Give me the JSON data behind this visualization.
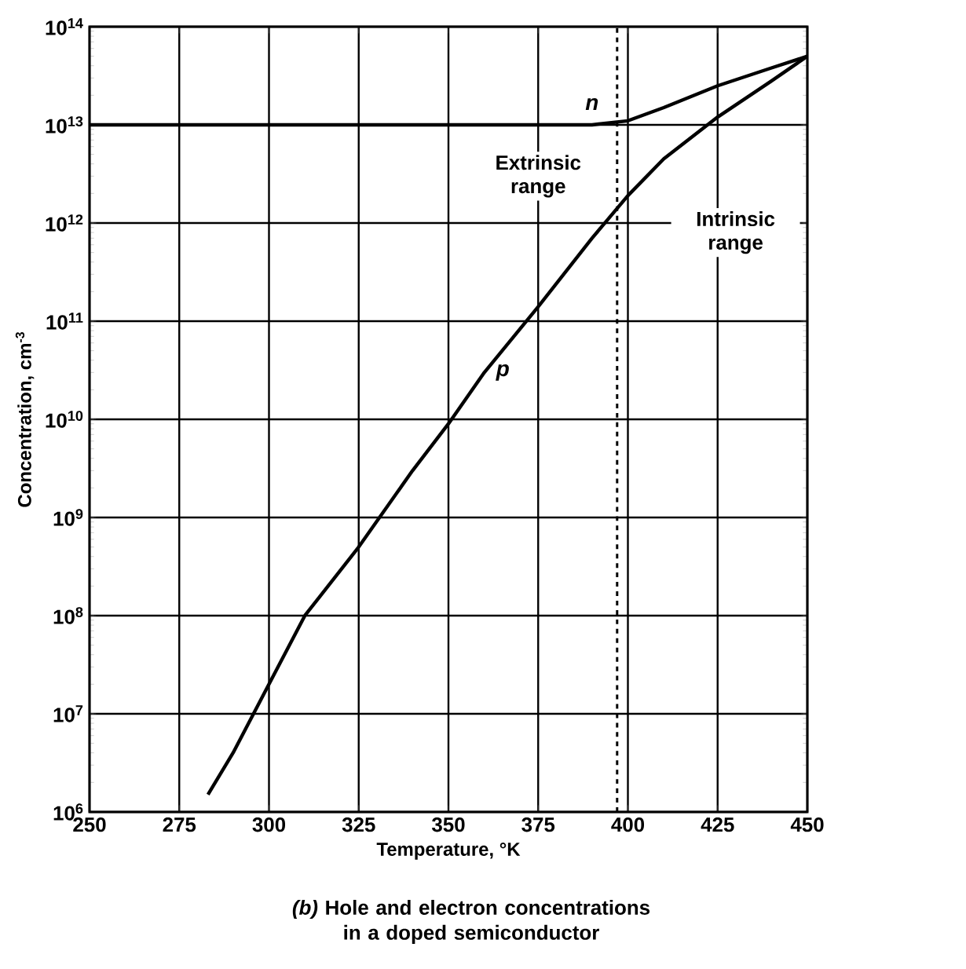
{
  "chart_data": {
    "type": "line",
    "xlabel": "Temperature, °K",
    "ylabel": "Concentration, cm$^{-3}$",
    "xlim": [
      250,
      450
    ],
    "xticks": [
      250,
      275,
      300,
      325,
      350,
      375,
      400,
      425,
      450
    ],
    "ylim": [
      1000000.0,
      100000000000000.0
    ],
    "log": "y",
    "yticks": [
      {
        "value": 1000000.0,
        "label": "10$^{6}$"
      },
      {
        "value": 10000000.0,
        "label": "10$^{7}$"
      },
      {
        "value": 100000000.0,
        "label": "10$^{8}$"
      },
      {
        "value": 1000000000.0,
        "label": "10$^{9}$"
      },
      {
        "value": 10000000000.0,
        "label": "10$^{10}$"
      },
      {
        "value": 100000000000.0,
        "label": "10$^{11}$"
      },
      {
        "value": 1000000000000.0,
        "label": "10$^{12}$"
      },
      {
        "value": 10000000000000.0,
        "label": "10$^{13}$"
      },
      {
        "value": 100000000000000.0,
        "label": "10$^{14}$"
      }
    ],
    "grid": true,
    "marker": "none",
    "line_style": "solid",
    "series": [
      {
        "name": "n",
        "color": "#000000",
        "x": [
          250,
          275,
          300,
          325,
          350,
          375,
          390,
          400,
          410,
          425,
          440,
          450
        ],
        "values": [
          10000000000000.0,
          10000000000000.0,
          10000000000000.0,
          10000000000000.0,
          10000000000000.0,
          10000000000000.0,
          10000000000000.0,
          11000000000000.0,
          15000000000000.0,
          25000000000000.0,
          38000000000000.0,
          50000000000000.0
        ]
      },
      {
        "name": "p",
        "color": "#000000",
        "x": [
          283,
          290,
          300,
          310,
          325,
          340,
          350,
          360,
          375,
          390,
          400,
          410,
          425,
          440,
          450
        ],
        "values": [
          1500000.0,
          4000000.0,
          20000000.0,
          100000000.0,
          500000000.0,
          3000000000.0,
          9000000000.0,
          30000000000.0,
          140000000000.0,
          700000000000.0,
          1900000000000.0,
          4500000000000.0,
          12000000000000.0,
          28000000000000.0,
          50000000000000.0
        ]
      }
    ],
    "ref_lines": [
      {
        "axis": "x",
        "value": 397,
        "line_style": "dashed",
        "color": "#000000"
      }
    ],
    "annotations": [
      "Extrinsic range",
      "Intrinsic range",
      "*(b)* Hole and electron concentrations in a doped semiconductor"
    ]
  }
}
